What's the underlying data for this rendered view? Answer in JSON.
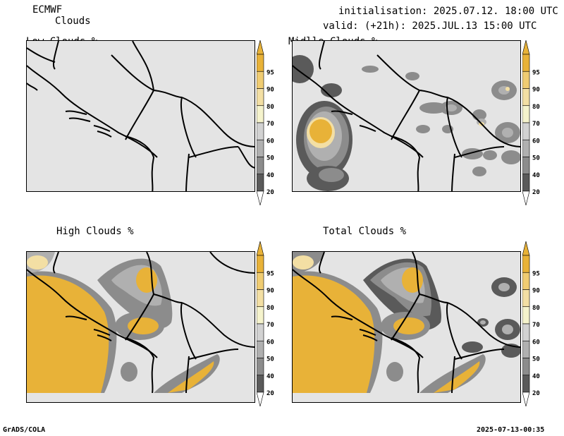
{
  "header": {
    "model": "ECMWF",
    "product": "Clouds",
    "init": "initialisation: 2025.07.12. 18:00 UTC",
    "valid": "valid: (+21h): 2025.JUL.13 15:00 UTC"
  },
  "panels": [
    {
      "title": "Low Clouds %"
    },
    {
      "title": "Midlle Clouds %"
    },
    {
      "title": "High Clouds %"
    },
    {
      "title": "Total Clouds %"
    }
  ],
  "colorbar": {
    "levels": [
      "95",
      "90",
      "80",
      "70",
      "60",
      "50",
      "40",
      "20"
    ],
    "colors": [
      "#e8b238",
      "#f0cc72",
      "#f3dfa4",
      "#f5f3cc",
      "#d2d2d2",
      "#b0b0b0",
      "#8c8c8c",
      "#5a5a5a"
    ]
  },
  "footer": {
    "left": "GrADS/COLA",
    "right": "2025-07-13-00:35"
  }
}
